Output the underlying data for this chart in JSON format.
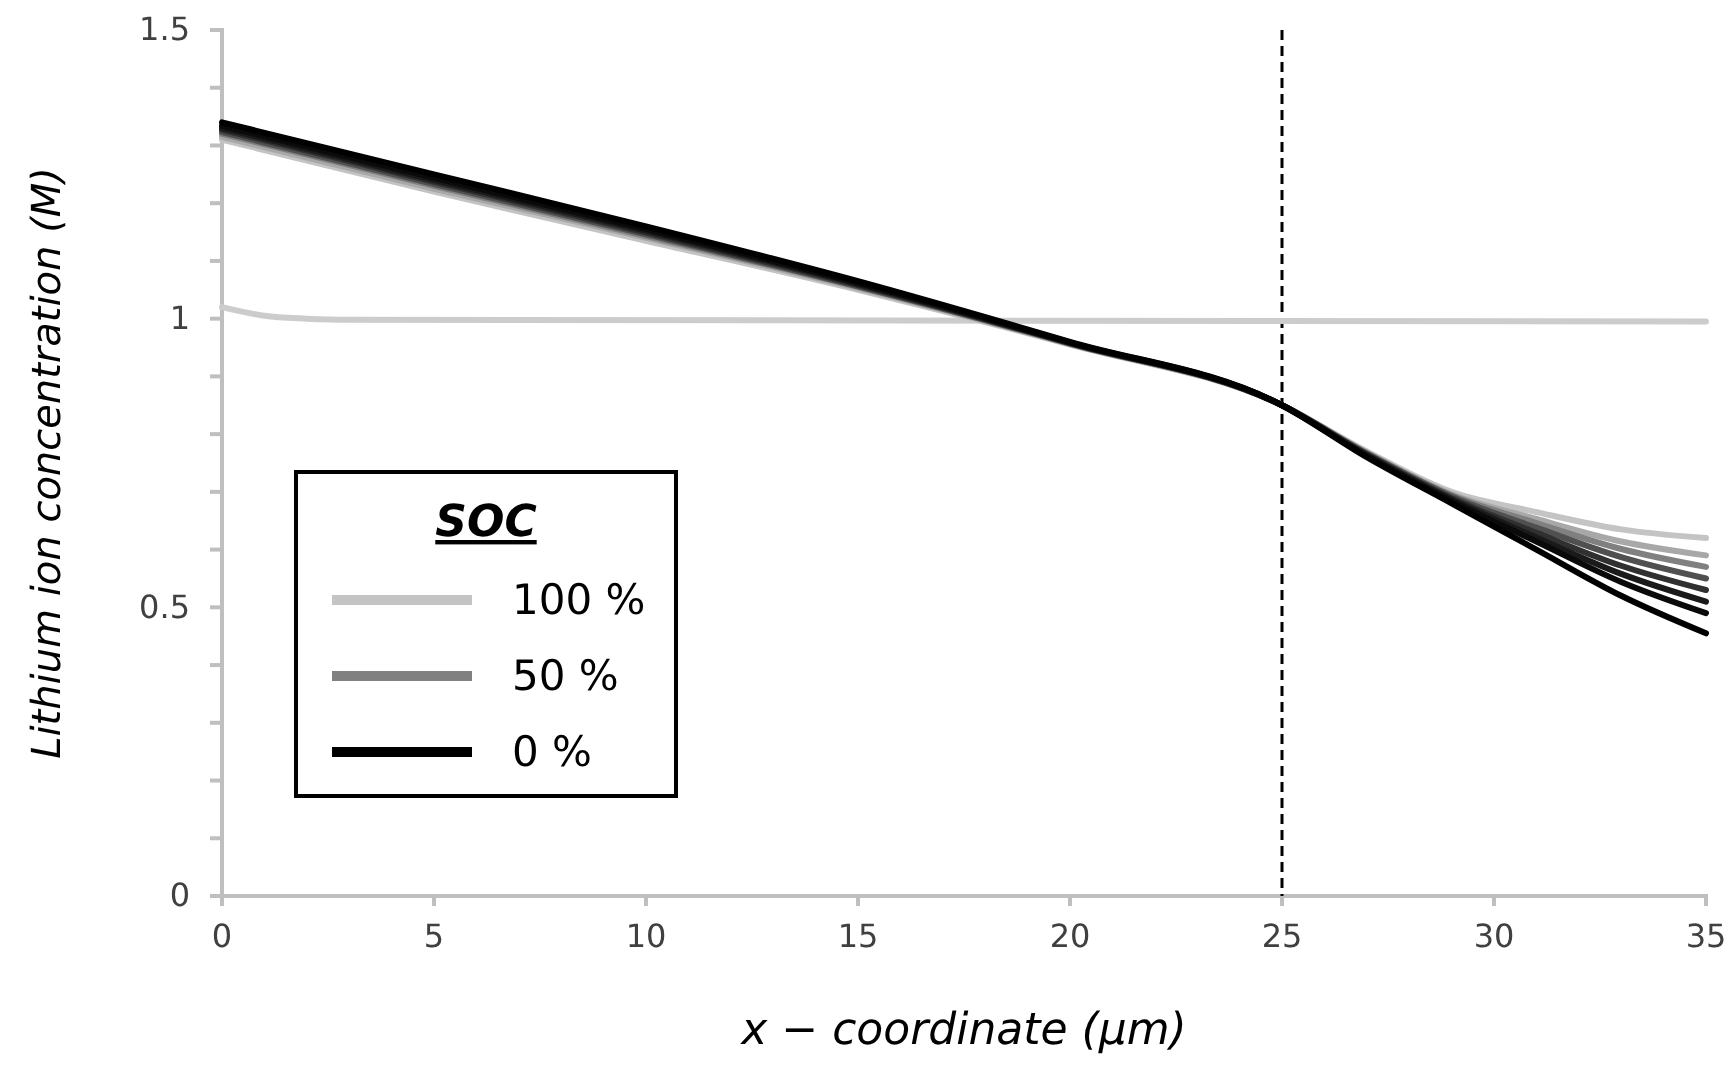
{
  "chart_data": {
    "type": "line",
    "xlabel": "x − coordinate (μm)",
    "ylabel": "Lithium ion concentration (M)",
    "legend_title": "SOC",
    "x": [
      0,
      5,
      10,
      15,
      20,
      25,
      27,
      29,
      31,
      33,
      35
    ],
    "xlim": [
      0,
      35
    ],
    "xticks": [
      0,
      5,
      10,
      15,
      20,
      25,
      30,
      35
    ],
    "ylim": [
      0,
      1.5
    ],
    "yticks": [
      0,
      {
        "value": 0.1,
        "label": null
      },
      {
        "value": 0.2,
        "label": null
      },
      {
        "value": 0.3,
        "label": null
      },
      {
        "value": 0.4,
        "label": null
      },
      0.5,
      {
        "value": 0.6,
        "label": null
      },
      {
        "value": 0.7,
        "label": null
      },
      {
        "value": 0.8,
        "label": null
      },
      {
        "value": 0.9,
        "label": null
      },
      1,
      {
        "value": 1.1,
        "label": null
      },
      {
        "value": 1.2,
        "label": null
      },
      {
        "value": 1.3,
        "label": null
      },
      {
        "value": 1.4,
        "label": null
      },
      1.5
    ],
    "grid": false,
    "legend": "bottom left",
    "line_style": "solid",
    "marker": "none",
    "ref_lines": [
      {
        "axis": "x",
        "value": 25,
        "color": "#000000",
        "line_style": "dashed"
      }
    ],
    "series": [
      {
        "color": "#cccccc",
        "x": [
          0,
          1,
          2,
          3,
          35
        ],
        "values": [
          1.02,
          1.005,
          1.0,
          0.998,
          0.995
        ]
      },
      {
        "name": "100 %",
        "color": "#c4c4c4",
        "values": [
          1.31,
          1.22,
          1.135,
          1.05,
          0.955,
          0.85,
          0.77,
          0.7,
          0.665,
          0.635,
          0.62
        ]
      },
      {
        "color": "#a8a8a8",
        "values": [
          1.315,
          1.225,
          1.14,
          1.053,
          0.956,
          0.85,
          0.768,
          0.696,
          0.653,
          0.614,
          0.59
        ]
      },
      {
        "name": "50 %",
        "color": "#808080",
        "values": [
          1.32,
          1.23,
          1.143,
          1.055,
          0.957,
          0.85,
          0.767,
          0.694,
          0.646,
          0.601,
          0.57
        ]
      },
      {
        "color": "#505050",
        "values": [
          1.323,
          1.233,
          1.146,
          1.056,
          0.957,
          0.85,
          0.766,
          0.692,
          0.638,
          0.587,
          0.55
        ]
      },
      {
        "color": "#303030",
        "values": [
          1.327,
          1.237,
          1.149,
          1.058,
          0.958,
          0.85,
          0.765,
          0.689,
          0.629,
          0.572,
          0.53
        ]
      },
      {
        "color": "#1a1a1a",
        "values": [
          1.33,
          1.24,
          1.152,
          1.06,
          0.958,
          0.85,
          0.763,
          0.687,
          0.621,
          0.558,
          0.51
        ]
      },
      {
        "color": "#0a0a0a",
        "values": [
          1.334,
          1.244,
          1.155,
          1.062,
          0.959,
          0.85,
          0.762,
          0.684,
          0.614,
          0.544,
          0.49
        ]
      },
      {
        "name": "0 %",
        "color": "#000000",
        "values": [
          1.34,
          1.25,
          1.16,
          1.065,
          0.96,
          0.85,
          0.76,
          0.68,
          0.6,
          0.52,
          0.455
        ]
      }
    ]
  }
}
